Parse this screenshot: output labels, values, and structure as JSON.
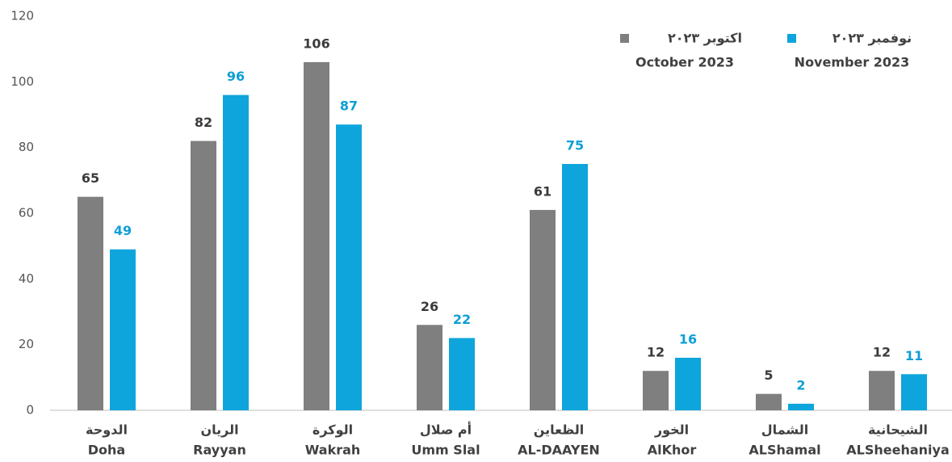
{
  "chart_data": {
    "type": "bar",
    "categories": [
      "Doha",
      "Rayyan",
      "Wakrah",
      "Umm Slal",
      "AL-DAAYEN",
      "AlKhor",
      "ALShamal",
      "ALSheehaniya"
    ],
    "categories_ar": [
      "الدوحة",
      "الريان",
      "الوكرة",
      "أم صلال",
      "الظعاين",
      "الخور",
      "الشمال",
      "الشيحانية"
    ],
    "series": [
      {
        "name": "October 2023",
        "name_ar": "اكتوبر ٢٠٢٣",
        "color": "#7f7f80",
        "label_color": "#3b3b3b",
        "values": [
          65,
          82,
          106,
          26,
          61,
          12,
          5,
          12
        ]
      },
      {
        "name": "November 2023",
        "name_ar": "نوفمبر ٢٠٢٣",
        "color": "#0ea5dc",
        "label_color": "#0e9fd6",
        "values": [
          49,
          96,
          87,
          22,
          75,
          16,
          2,
          11
        ]
      }
    ],
    "ylim": [
      0,
      120
    ],
    "yticks": [
      0,
      20,
      40,
      60,
      80,
      100,
      120
    ],
    "grid": false
  }
}
